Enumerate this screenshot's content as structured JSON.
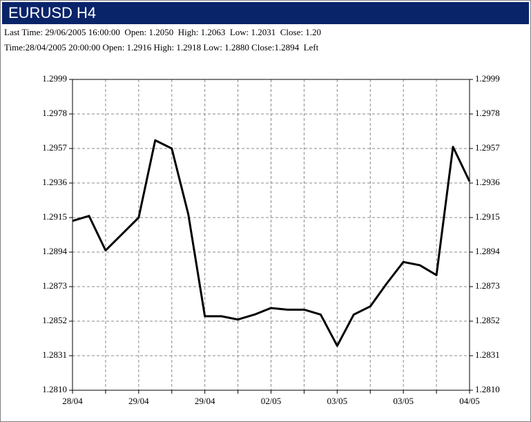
{
  "header": {
    "title": "EURUSD H4",
    "lines": [
      "Last Time: 29/06/2005 16:00:00  Open: 1.2050  High: 1.2063  Low: 1.2031  Close: 1.20",
      "Time:28/04/2005 20:00:00 Open: 1.2916 High: 1.2918 Low: 1.2880 Close:1.2894  Left"
    ]
  },
  "chart_data": {
    "type": "line",
    "categories": [
      "28/04",
      null,
      null,
      null,
      "29/04",
      null,
      null,
      null,
      "29/04",
      null,
      null,
      null,
      "02/05",
      null,
      null,
      null,
      "03/05",
      null,
      null,
      null,
      "03/05",
      null,
      null,
      null,
      "04/05"
    ],
    "values": [
      1.2913,
      1.2916,
      1.2895,
      1.2905,
      1.2915,
      1.2962,
      1.2957,
      1.2917,
      1.2855,
      1.2855,
      1.2853,
      1.2856,
      1.286,
      1.2859,
      1.2859,
      1.2856,
      1.2837,
      1.2856,
      1.2861,
      1.2875,
      1.2888,
      1.2886,
      1.288,
      1.2958,
      1.2937
    ],
    "color": "#000000",
    "ylim": [
      1.281,
      1.2999
    ],
    "yticks": [
      {
        "value": 1.281,
        "label": "1.2810"
      },
      1.2831,
      1.2852,
      1.2873,
      1.2894,
      1.2915,
      1.2936,
      1.2957,
      1.2978,
      1.2999
    ],
    "grid": true
  }
}
